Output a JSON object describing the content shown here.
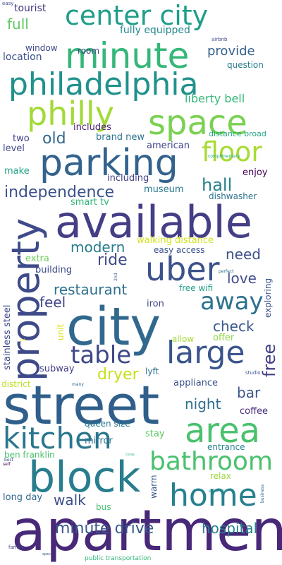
{
  "words": [
    {
      "text": "apartment",
      "color": "#482878"
    },
    {
      "text": "street",
      "color": "#2f5f8a"
    },
    {
      "text": "available",
      "color": "#433e85"
    },
    {
      "text": "city",
      "color": "#31688e"
    },
    {
      "text": "property",
      "color": "#3e4a89"
    },
    {
      "text": "minute",
      "color": "#35b779"
    },
    {
      "text": "parking",
      "color": "#33638d"
    },
    {
      "text": "philadelphia",
      "color": "#21918c"
    },
    {
      "text": "space",
      "color": "#7ad151"
    },
    {
      "text": "philly",
      "color": "#a2da37"
    },
    {
      "text": "center city",
      "color": "#1f9e89"
    },
    {
      "text": "uber",
      "color": "#3b528b"
    },
    {
      "text": "area",
      "color": "#4ac16d"
    },
    {
      "text": "block",
      "color": "#287d8e"
    },
    {
      "text": "large",
      "color": "#39558c"
    },
    {
      "text": "kitchen",
      "color": "#2a768e"
    },
    {
      "text": "home",
      "color": "#27808e"
    },
    {
      "text": "bathroom",
      "color": "#4ac16d"
    },
    {
      "text": "floor",
      "color": "#a8db34"
    },
    {
      "text": "away",
      "color": "#2c728e"
    },
    {
      "text": "table",
      "color": "#3f4788"
    },
    {
      "text": "independence",
      "color": "#3b528b"
    },
    {
      "text": "minute drive",
      "color": "#38598c"
    },
    {
      "text": "restaurant",
      "color": "#2c718e"
    },
    {
      "text": "old",
      "color": "#31688e"
    },
    {
      "text": "hall",
      "color": "#26828e"
    },
    {
      "text": "free",
      "color": "#433e85"
    },
    {
      "text": "ride",
      "color": "#3e4989"
    },
    {
      "text": "modern",
      "color": "#287c8e"
    },
    {
      "text": "dryer",
      "color": "#c8e020"
    },
    {
      "text": "love",
      "color": "#3e4c8a"
    },
    {
      "text": "check",
      "color": "#38588c"
    },
    {
      "text": "feel",
      "color": "#404588"
    },
    {
      "text": "need",
      "color": "#3d4e8a"
    },
    {
      "text": "night",
      "color": "#2d6f8e"
    },
    {
      "text": "bar",
      "color": "#3a548c"
    },
    {
      "text": "walk",
      "color": "#3c4f8a"
    },
    {
      "text": "hospital",
      "color": "#26828e"
    },
    {
      "text": "full",
      "color": "#5ec962"
    },
    {
      "text": "provide",
      "color": "#34618d"
    },
    {
      "text": "liberty bell",
      "color": "#35b779"
    },
    {
      "text": "fully equipped",
      "color": "#23898e"
    },
    {
      "text": "tourist",
      "color": "#453781"
    },
    {
      "text": "room",
      "color": "#414487"
    },
    {
      "text": "location",
      "color": "#3b528b"
    },
    {
      "text": "window",
      "color": "#3e4a89"
    },
    {
      "text": "question",
      "color": "#287c8e"
    },
    {
      "text": "includes",
      "color": "#481f70"
    },
    {
      "text": "brand new",
      "color": "#2c728e"
    },
    {
      "text": "two",
      "color": "#424086"
    },
    {
      "text": "level",
      "color": "#3f4889"
    },
    {
      "text": "american",
      "color": "#3f4889"
    },
    {
      "text": "distance broad",
      "color": "#22a785"
    },
    {
      "text": "make",
      "color": "#20a486"
    },
    {
      "text": "including",
      "color": "#424086"
    },
    {
      "text": "enjoy",
      "color": "#440154"
    },
    {
      "text": "museum",
      "color": "#2a788e"
    },
    {
      "text": "dishwasher",
      "color": "#2c728e"
    },
    {
      "text": "smart tv",
      "color": "#34b679"
    },
    {
      "text": "walking distance",
      "color": "#d2e21b"
    },
    {
      "text": "easy access",
      "color": "#3b528b"
    },
    {
      "text": "extra",
      "color": "#6ccd5a"
    },
    {
      "text": "building",
      "color": "#3e4a89"
    },
    {
      "text": "free wifi",
      "color": "#1fa088"
    },
    {
      "text": "iron",
      "color": "#414487"
    },
    {
      "text": "exploring",
      "color": "#3b528b"
    },
    {
      "text": "stainless steel",
      "color": "#3e4a89"
    },
    {
      "text": "unit",
      "color": "#d8e219"
    },
    {
      "text": "allow",
      "color": "#a5db36"
    },
    {
      "text": "offer",
      "color": "#8fd744"
    },
    {
      "text": "subway",
      "color": "#433e85"
    },
    {
      "text": "lyft",
      "color": "#2c718e"
    },
    {
      "text": "district",
      "color": "#bddf26"
    },
    {
      "text": "appliance",
      "color": "#3b528b"
    },
    {
      "text": "coffee",
      "color": "#472d7b"
    },
    {
      "text": "queen size",
      "color": "#2a788e"
    },
    {
      "text": "stay",
      "color": "#5ec962"
    },
    {
      "text": "ben franklin",
      "color": "#4ac16d"
    },
    {
      "text": "mirror",
      "color": "#2c728e"
    },
    {
      "text": "entrance",
      "color": "#26828e"
    },
    {
      "text": "relax",
      "color": "#9bd93c"
    },
    {
      "text": "long day",
      "color": "#31688e"
    },
    {
      "text": "warm",
      "color": "#38588c"
    },
    {
      "text": "bus",
      "color": "#4ac16d"
    },
    {
      "text": "public transportation",
      "color": "#35b779"
    },
    {
      "text": "airbnb",
      "color": "#3e4a89"
    },
    {
      "text": "easy",
      "color": "#3e4a89"
    },
    {
      "text": "complimentary",
      "color": "#20a486"
    },
    {
      "text": "perfect",
      "color": "#2c728e"
    },
    {
      "text": "2nd",
      "color": "#3e4a89"
    },
    {
      "text": "set",
      "color": "#fde725"
    },
    {
      "text": "studio",
      "color": "#3b528b"
    },
    {
      "text": "many",
      "color": "#31688e"
    },
    {
      "text": "best",
      "color": "#3e4a89"
    },
    {
      "text": "self",
      "color": "#440154"
    },
    {
      "text": "essential",
      "color": "#21918c"
    },
    {
      "text": "business",
      "color": "#31688e"
    },
    {
      "text": "family",
      "color": "#404588"
    },
    {
      "text": "close",
      "color": "#35b779"
    },
    {
      "text": "space",
      "color": "#3b528b"
    }
  ]
}
